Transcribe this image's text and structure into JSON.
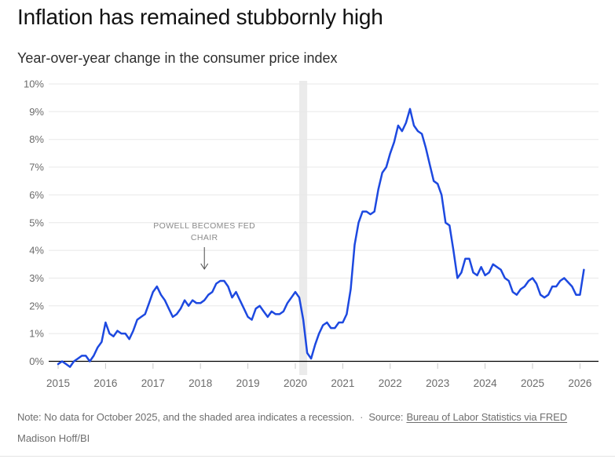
{
  "header": {
    "title": "Inflation has remained stubbornly high",
    "subtitle": "Year-over-year change in the consumer price index"
  },
  "footer": {
    "note": "Note: No data for October 2025, and the shaded area indicates a recession.",
    "separator": "·",
    "source_label": "Source:",
    "source_link": "Bureau of Labor Statistics via FRED",
    "byline": "Madison Hoff/BI"
  },
  "colors": {
    "line": "#1d49e0",
    "recession_band": "#ebebeb",
    "gridline": "#e8e8e8",
    "axis": "#000000",
    "axis_label": "#6b6b6b",
    "annotation": "#8a8a8a",
    "arrow": "#4a4a4a"
  },
  "chart_data": {
    "type": "line",
    "title": "Inflation has remained stubbornly high",
    "subtitle": "Year-over-year change in the consumer price index",
    "unit": "percent",
    "grid": "horizontal",
    "legend": "none",
    "ylim": [
      0,
      10
    ],
    "y_tick_labels": [
      "0%",
      "1%",
      "2%",
      "3%",
      "4%",
      "5%",
      "6%",
      "7%",
      "8%",
      "9%",
      "10%"
    ],
    "x_tick_labels": [
      "2015",
      "2016",
      "2017",
      "2018",
      "2019",
      "2020",
      "2021",
      "2022",
      "2023",
      "2024",
      "2025",
      "2026"
    ],
    "line_color": "#1d49e0",
    "recession_band": {
      "from": "2020-02",
      "to": "2020-04",
      "color": "#ebebeb",
      "meaning": "recession"
    },
    "missing_data": [
      "2025-10"
    ],
    "annotation": {
      "text": "POWELL BECOMES FED CHAIR",
      "lines": [
        "POWELL BECOMES FED",
        "CHAIR"
      ],
      "points_to": "2018-02",
      "color": "#8a8a8a"
    },
    "series": [
      {
        "name": "CPI year-over-year change",
        "start": "2015-01",
        "interval": "monthly",
        "values": [
          -0.1,
          0.0,
          -0.1,
          -0.2,
          0.0,
          0.1,
          0.2,
          0.2,
          0.0,
          0.2,
          0.5,
          0.7,
          1.4,
          1.0,
          0.9,
          1.1,
          1.0,
          1.0,
          0.8,
          1.1,
          1.5,
          1.6,
          1.7,
          2.1,
          2.5,
          2.7,
          2.4,
          2.2,
          1.9,
          1.6,
          1.7,
          1.9,
          2.2,
          2.0,
          2.2,
          2.1,
          2.1,
          2.2,
          2.4,
          2.5,
          2.8,
          2.9,
          2.9,
          2.7,
          2.3,
          2.5,
          2.2,
          1.9,
          1.6,
          1.5,
          1.9,
          2.0,
          1.8,
          1.6,
          1.8,
          1.7,
          1.7,
          1.8,
          2.1,
          2.3,
          2.5,
          2.3,
          1.5,
          0.3,
          0.1,
          0.6,
          1.0,
          1.3,
          1.4,
          1.2,
          1.2,
          1.4,
          1.4,
          1.7,
          2.6,
          4.2,
          5.0,
          5.4,
          5.4,
          5.3,
          5.4,
          6.2,
          6.8,
          7.0,
          7.5,
          7.9,
          8.5,
          8.3,
          8.6,
          9.1,
          8.5,
          8.3,
          8.2,
          7.7,
          7.1,
          6.5,
          6.4,
          6.0,
          5.0,
          4.9,
          4.0,
          3.0,
          3.2,
          3.7,
          3.7,
          3.2,
          3.1,
          3.4,
          3.1,
          3.2,
          3.5,
          3.4,
          3.3,
          3.0,
          2.9,
          2.5,
          2.4,
          2.6,
          2.7,
          2.9,
          3.0,
          2.8,
          2.4,
          2.3,
          2.4,
          2.7,
          2.7,
          2.9,
          3.0,
          null,
          2.7,
          2.4,
          2.4,
          3.3
        ]
      }
    ]
  }
}
